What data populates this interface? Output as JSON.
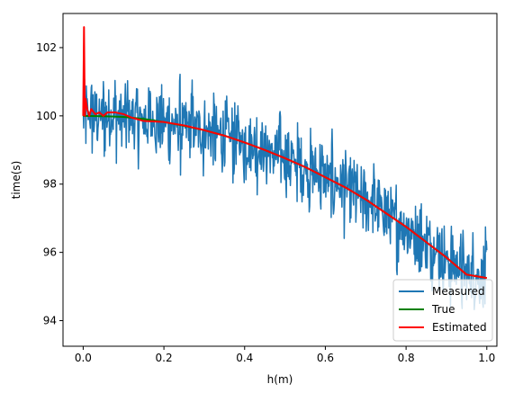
{
  "chart_data": {
    "type": "line",
    "title": "",
    "xlabel": "h(m)",
    "ylabel": "time(s)",
    "xlim": [
      -0.05,
      1.025
    ],
    "ylim": [
      93.25,
      103.0
    ],
    "xticks": [
      {
        "value": 0.0,
        "label": "0.0"
      },
      {
        "value": 0.2,
        "label": "0.2"
      },
      {
        "value": 0.4,
        "label": "0.4"
      },
      {
        "value": 0.6,
        "label": "0.6"
      },
      {
        "value": 0.8,
        "label": "0.8"
      },
      {
        "value": 1.0,
        "label": "1.0"
      }
    ],
    "yticks": [
      {
        "value": 94,
        "label": "94"
      },
      {
        "value": 96,
        "label": "96"
      },
      {
        "value": 98,
        "label": "98"
      },
      {
        "value": 100,
        "label": "100"
      },
      {
        "value": 102,
        "label": "102"
      }
    ],
    "grid": false,
    "legend_position": "lower-right",
    "series": [
      {
        "name": "Measured",
        "color": "#1f77b4",
        "style": "noisy",
        "x": [
          0.0,
          0.05,
          0.1,
          0.15,
          0.2,
          0.25,
          0.3,
          0.35,
          0.4,
          0.45,
          0.5,
          0.55,
          0.6,
          0.65,
          0.7,
          0.75,
          0.8,
          0.85,
          0.9,
          0.95,
          1.0
        ],
        "y": [
          100.0,
          100.0,
          99.95,
          99.88,
          99.8,
          99.7,
          99.58,
          99.42,
          99.22,
          99.0,
          98.76,
          98.5,
          98.2,
          97.9,
          97.55,
          97.15,
          96.75,
          96.3,
          95.85,
          95.35,
          95.25
        ],
        "noise_amplitude": 1.6,
        "range_min": 94.3,
        "range_max": 102.0
      },
      {
        "name": "True",
        "color": "#008000",
        "x": [
          0.0,
          0.05,
          0.1,
          0.15,
          0.2,
          0.25,
          0.3,
          0.35,
          0.4,
          0.45,
          0.5,
          0.55,
          0.6,
          0.65,
          0.7,
          0.75,
          0.8,
          0.85,
          0.9,
          0.95,
          1.0
        ],
        "y": [
          100.0,
          99.99,
          99.97,
          99.91,
          99.82,
          99.71,
          99.58,
          99.42,
          99.22,
          99.0,
          98.76,
          98.5,
          98.2,
          97.9,
          97.55,
          97.15,
          96.75,
          96.3,
          95.85,
          95.35,
          95.25
        ]
      },
      {
        "name": "Estimated",
        "color": "#ff0000",
        "x": [
          0.0,
          0.002,
          0.004,
          0.006,
          0.01,
          0.015,
          0.02,
          0.03,
          0.04,
          0.05,
          0.06,
          0.08,
          0.1,
          0.12,
          0.15,
          0.2,
          0.25,
          0.3,
          0.35,
          0.4,
          0.45,
          0.5,
          0.55,
          0.6,
          0.65,
          0.7,
          0.75,
          0.8,
          0.85,
          0.9,
          0.95,
          1.0
        ],
        "y": [
          100.0,
          102.6,
          100.0,
          100.5,
          100.2,
          100.0,
          100.2,
          100.05,
          100.1,
          100.0,
          100.1,
          100.1,
          100.05,
          99.95,
          99.85,
          99.82,
          99.72,
          99.58,
          99.42,
          99.22,
          99.0,
          98.76,
          98.5,
          98.2,
          97.9,
          97.55,
          97.15,
          96.75,
          96.3,
          95.85,
          95.35,
          95.25
        ]
      }
    ]
  }
}
